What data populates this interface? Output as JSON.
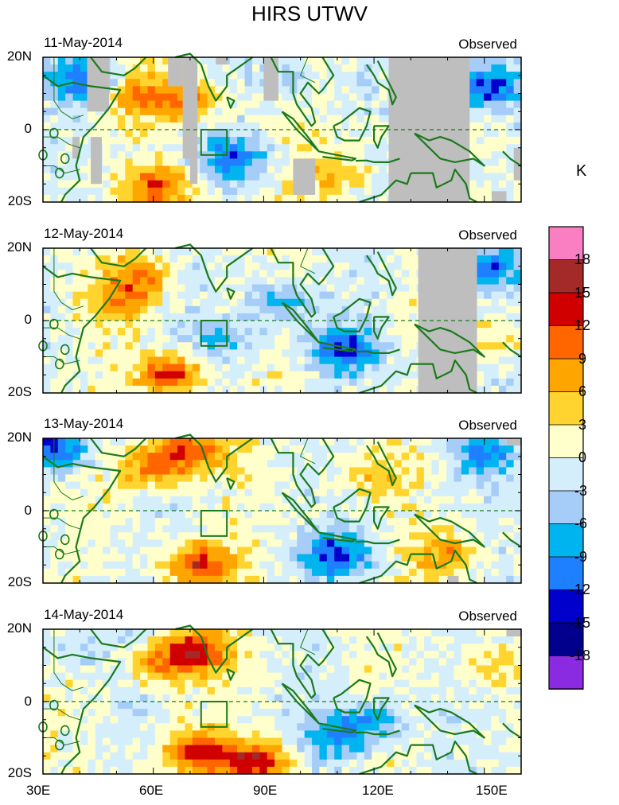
{
  "chart_data": {
    "type": "heatmap",
    "title": "HIRS UTWV",
    "colorbar": {
      "unit": "K",
      "levels": [
        "18",
        "15",
        "12",
        "9",
        "6",
        "3",
        "0",
        "-3",
        "-6",
        "-9",
        "-12",
        "-15",
        "-18"
      ],
      "colors": [
        "#fa7ec2",
        "#a42a2a",
        "#d00000",
        "#ff6600",
        "#ffa500",
        "#ffd42f",
        "#ffffcc",
        "#d5eefb",
        "#a6cdf7",
        "#00b4f0",
        "#1e80ff",
        "#0000cd",
        "#00008c",
        "#8a2be2"
      ]
    },
    "x_ticks": [
      "30E",
      "60E",
      "90E",
      "120E",
      "150E"
    ],
    "y_ticks": [
      "20N",
      "0",
      "20S"
    ],
    "xlim": [
      30,
      160
    ],
    "ylim": [
      -20,
      20
    ],
    "missing_color": "#bebebe",
    "land_outline_color": "#1b7a1b",
    "box_region": {
      "lon": [
        73,
        80
      ],
      "lat": [
        -7,
        0
      ]
    },
    "panels": [
      {
        "date": "11-May-2014",
        "label": "Observed",
        "anomalies": [
          {
            "lon": 42,
            "lat": 14,
            "value": -12
          },
          {
            "lon": 56,
            "lat": 10,
            "value": 8
          },
          {
            "lon": 70,
            "lat": 8,
            "value": 9
          },
          {
            "lon": 62,
            "lat": -16,
            "value": 10
          },
          {
            "lon": 82,
            "lat": -8,
            "value": -10
          },
          {
            "lon": 110,
            "lat": -12,
            "value": 6
          },
          {
            "lon": 150,
            "lat": 12,
            "value": -14
          },
          {
            "lon": 96,
            "lat": 14,
            "value": -5
          }
        ],
        "missing": [
          [
            42,
            48,
            5,
            20
          ],
          [
            43,
            46,
            -15,
            -2
          ],
          [
            38,
            40,
            -8,
            -2
          ],
          [
            64,
            68,
            12,
            20
          ],
          [
            68,
            72,
            -8,
            20
          ],
          [
            70,
            72,
            -15,
            -5
          ],
          [
            77,
            80,
            18,
            20
          ],
          [
            90,
            94,
            8,
            20
          ],
          [
            98,
            104,
            -18,
            -8
          ],
          [
            124,
            146,
            -20,
            20
          ],
          [
            152,
            156,
            -20,
            -17
          ],
          [
            158,
            160,
            -14,
            -5
          ]
        ]
      },
      {
        "date": "12-May-2014",
        "label": "Observed",
        "anomalies": [
          {
            "lon": 56,
            "lat": 12,
            "value": 9
          },
          {
            "lon": 50,
            "lat": 5,
            "value": 6
          },
          {
            "lon": 65,
            "lat": -15,
            "value": 13
          },
          {
            "lon": 80,
            "lat": -5,
            "value": -6
          },
          {
            "lon": 95,
            "lat": 5,
            "value": -8
          },
          {
            "lon": 112,
            "lat": -8,
            "value": -12
          },
          {
            "lon": 150,
            "lat": 15,
            "value": -10
          },
          {
            "lon": 155,
            "lat": -5,
            "value": 5
          }
        ],
        "missing": [
          [
            132,
            148,
            -20,
            20
          ],
          [
            133,
            136,
            -20,
            -16
          ]
        ]
      },
      {
        "date": "13-May-2014",
        "label": "Observed",
        "anomalies": [
          {
            "lon": 34,
            "lat": 17,
            "value": -13
          },
          {
            "lon": 60,
            "lat": 12,
            "value": 10
          },
          {
            "lon": 70,
            "lat": 17,
            "value": 12
          },
          {
            "lon": 72,
            "lat": -15,
            "value": 14
          },
          {
            "lon": 110,
            "lat": -12,
            "value": -12
          },
          {
            "lon": 140,
            "lat": -12,
            "value": 8
          },
          {
            "lon": 150,
            "lat": 16,
            "value": -9
          },
          {
            "lon": 120,
            "lat": 10,
            "value": 5
          }
        ],
        "missing": [
          [
            156,
            160,
            18,
            20
          ],
          [
            140,
            143,
            -20,
            -18
          ]
        ]
      },
      {
        "date": "14-May-2014",
        "label": "Observed",
        "anomalies": [
          {
            "lon": 62,
            "lat": 10,
            "value": 8
          },
          {
            "lon": 72,
            "lat": 14,
            "value": 13
          },
          {
            "lon": 72,
            "lat": -14,
            "value": 12
          },
          {
            "lon": 88,
            "lat": -17,
            "value": 14
          },
          {
            "lon": 110,
            "lat": -10,
            "value": -9
          },
          {
            "lon": 120,
            "lat": -5,
            "value": -8
          },
          {
            "lon": 150,
            "lat": 10,
            "value": 5
          },
          {
            "lon": 40,
            "lat": 14,
            "value": -4
          }
        ],
        "missing": [
          [
            156,
            160,
            18,
            20
          ]
        ]
      }
    ]
  }
}
